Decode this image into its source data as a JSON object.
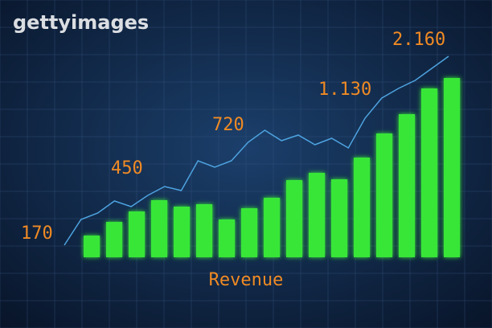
{
  "watermark": "gettyimages",
  "chart_data": {
    "type": "bar-line",
    "x_label": "Revenue",
    "annotations": [
      "170",
      "450",
      "720",
      "1.130",
      "2.160"
    ],
    "bar_color": "#39e639",
    "line_color": "#4da3e0",
    "bars": [
      27,
      44,
      57,
      71,
      63,
      66,
      47,
      61,
      74,
      96,
      105,
      97,
      124,
      154,
      178,
      210,
      223
    ],
    "line": [
      15,
      47,
      55,
      70,
      63,
      77,
      88,
      83,
      120,
      112,
      120,
      143,
      158,
      145,
      152,
      140,
      148,
      136,
      173,
      198,
      210,
      220,
      235,
      250
    ]
  }
}
